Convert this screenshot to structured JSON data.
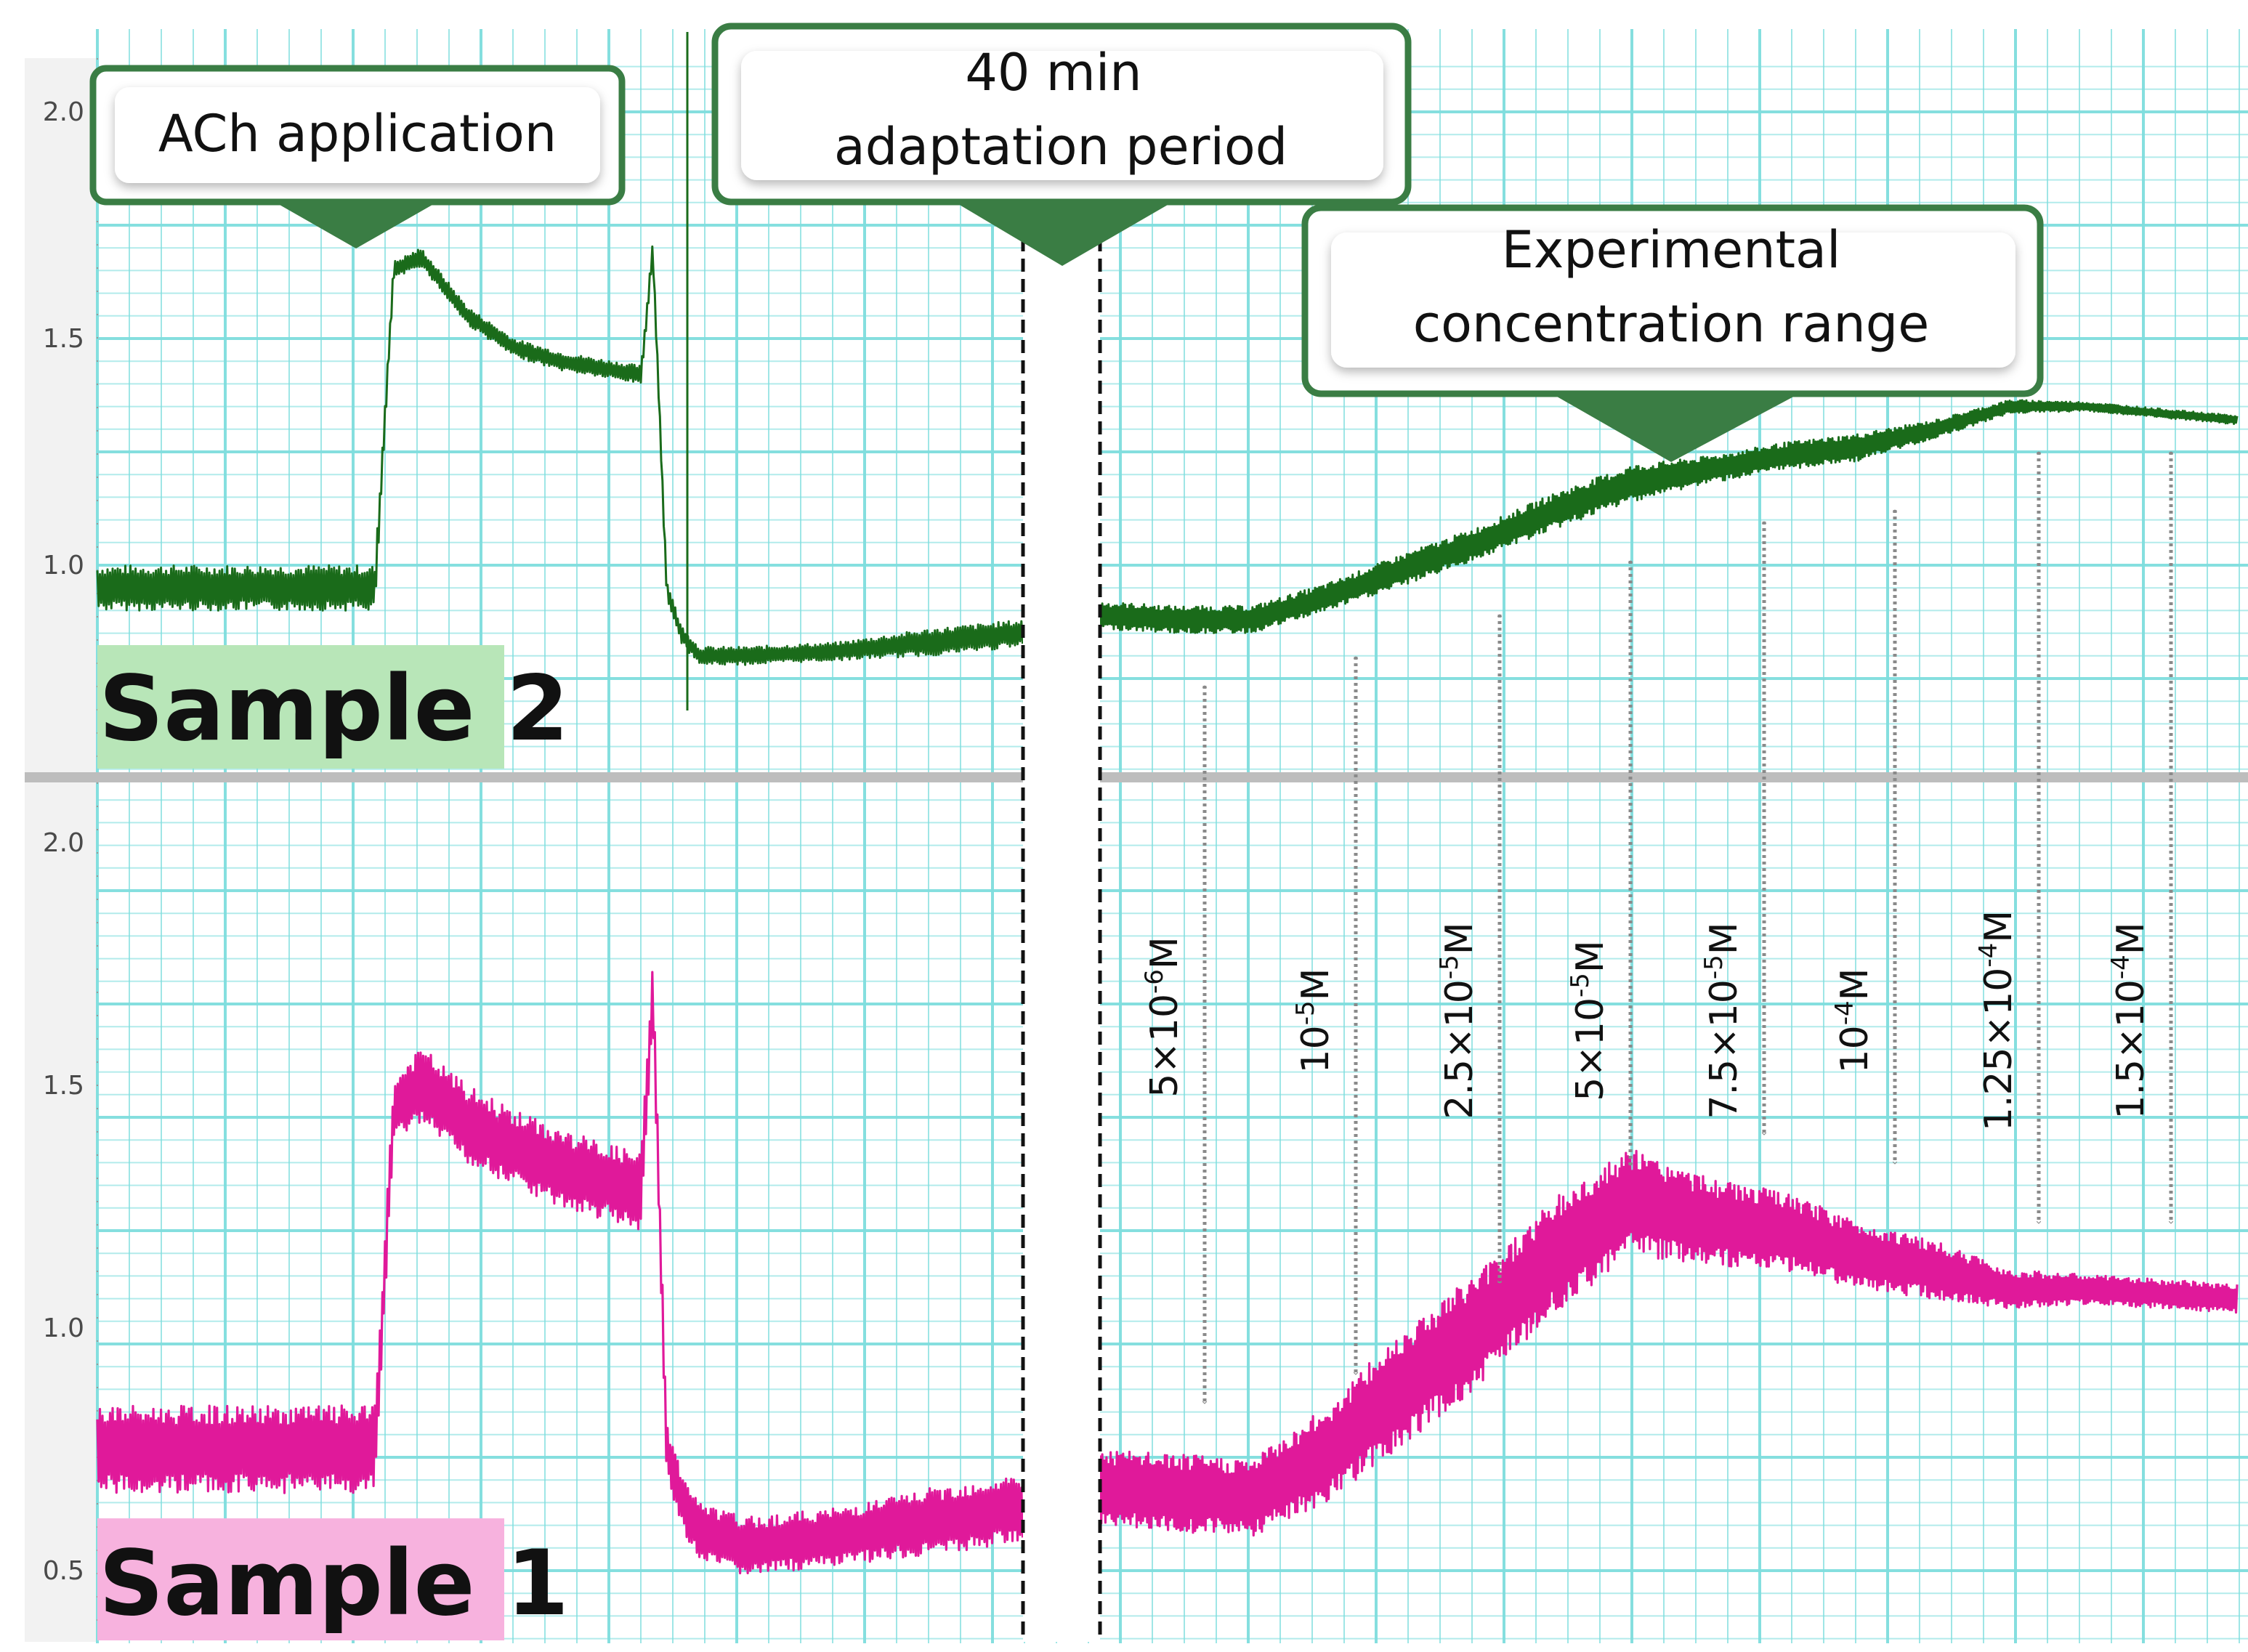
{
  "chart_data": {
    "type": "line",
    "title": "",
    "xlabel": "",
    "ylabel": "",
    "panels": [
      {
        "id": "sample-2",
        "label": "Sample 2",
        "color": "#1a6b1a",
        "label_bg": "#b8e6b8",
        "ylim": [
          0.55,
          2.15
        ],
        "yticks": [
          1.0,
          1.5,
          2.0
        ],
        "ytick_labels": [
          "1.0",
          "1.5",
          "2.0"
        ]
      },
      {
        "id": "sample-1",
        "label": "Sample 1",
        "color": "#e0199a",
        "label_bg": "#f7b2de",
        "ylim": [
          0.35,
          2.15
        ],
        "yticks": [
          0.5,
          1.0,
          1.5,
          2.0
        ],
        "ytick_labels": [
          "0.5",
          "1.0",
          "1.5",
          "2.0"
        ]
      }
    ],
    "series": [
      {
        "name": "Sample 2",
        "panel": "sample-2",
        "color": "#1a6b1a",
        "x": [
          0,
          12,
          12.8,
          14,
          16,
          18,
          20,
          23.5,
          24,
          24.6,
          25.2,
          26,
          28,
          32,
          36,
          40,
          40.01,
          44,
          48,
          52,
          56,
          60,
          64,
          68,
          72,
          76,
          80,
          84,
          88,
          92,
          100
        ],
        "values": [
          0.95,
          0.95,
          1.65,
          1.68,
          1.55,
          1.48,
          1.45,
          1.42,
          1.7,
          0.95,
          0.85,
          0.8,
          0.8,
          0.81,
          0.83,
          0.85,
          0.89,
          0.88,
          0.88,
          0.93,
          0.99,
          1.05,
          1.12,
          1.18,
          1.21,
          1.24,
          1.26,
          1.3,
          1.35,
          1.35,
          1.32
        ],
        "noise": [
          0.05,
          0.05,
          0.02,
          0.02,
          0.02,
          0.02,
          0.02,
          0.02,
          0.02,
          0.02,
          0.02,
          0.02,
          0.02,
          0.02,
          0.03,
          0.03,
          0.03,
          0.03,
          0.03,
          0.03,
          0.035,
          0.035,
          0.04,
          0.04,
          0.03,
          0.03,
          0.03,
          0.02,
          0.015,
          0.01,
          0.01
        ]
      },
      {
        "name": "Sample 1",
        "panel": "sample-1",
        "color": "#e0199a",
        "x": [
          0,
          12,
          12.8,
          14,
          16,
          18,
          20,
          23.5,
          24,
          24.6,
          25.2,
          26,
          28,
          32,
          36,
          40,
          40.01,
          44,
          48,
          52,
          56,
          60,
          64,
          68,
          72,
          76,
          80,
          84,
          88,
          92,
          100
        ],
        "values": [
          0.75,
          0.75,
          1.45,
          1.5,
          1.42,
          1.37,
          1.33,
          1.28,
          1.7,
          0.75,
          0.65,
          0.58,
          0.55,
          0.57,
          0.6,
          0.63,
          0.67,
          0.66,
          0.65,
          0.74,
          0.88,
          1.0,
          1.15,
          1.26,
          1.22,
          1.2,
          1.15,
          1.12,
          1.08,
          1.08,
          1.06
        ],
        "noise": [
          0.09,
          0.09,
          0.06,
          0.08,
          0.08,
          0.08,
          0.08,
          0.08,
          0.06,
          0.06,
          0.06,
          0.06,
          0.06,
          0.06,
          0.07,
          0.07,
          0.08,
          0.08,
          0.08,
          0.1,
          0.12,
          0.12,
          0.12,
          0.11,
          0.09,
          0.08,
          0.07,
          0.06,
          0.04,
          0.03,
          0.03
        ]
      }
    ],
    "annotations": {
      "callouts": [
        {
          "id": "ach",
          "lines": [
            "ACh application"
          ]
        },
        {
          "id": "adaptation",
          "lines": [
            "40 min",
            "adaptation period"
          ]
        },
        {
          "id": "experimental",
          "lines": [
            "Experimental",
            "concentration range"
          ]
        }
      ],
      "concentrations": [
        {
          "base": "5×10",
          "exp": "-6",
          "unit": "M"
        },
        {
          "base": "10",
          "exp": "-5",
          "unit": "M"
        },
        {
          "base": "2.5×10",
          "exp": "-5",
          "unit": "M"
        },
        {
          "base": "5×10",
          "exp": "-5",
          "unit": "M"
        },
        {
          "base": "7.5×10",
          "exp": "-5",
          "unit": "M"
        },
        {
          "base": "10",
          "exp": "-4",
          "unit": "M"
        },
        {
          "base": "1.25×10",
          "exp": "-4",
          "unit": "M"
        },
        {
          "base": "1.5×10",
          "exp": "-4",
          "unit": "M"
        }
      ]
    }
  },
  "colors": {
    "grid": "#7fdede",
    "callout_border": "#3a7d44",
    "axis_strip": "#f2f2f2",
    "divider": "#bdbdbd",
    "arrow": "#8a8a8a"
  }
}
